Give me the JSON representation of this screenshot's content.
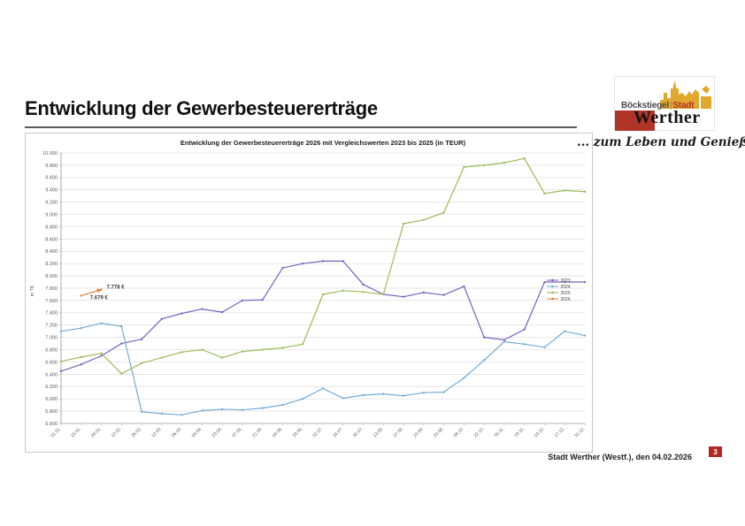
{
  "slide": {
    "title": "Entwicklung der Gewerbesteuererträge",
    "footer": "Stadt Werther (Westf.), den 04.02.2026",
    "page_number": "3"
  },
  "logo": {
    "line1_left": "Böckstiegel",
    "line1_right": "Stadt",
    "line2": "Werther",
    "tagline": "... zum Leben und Genießen",
    "colors": {
      "yellow": "#e2a72e",
      "red": "#b03428"
    }
  },
  "chart_data": {
    "type": "line",
    "title": "Entwicklung der Gewerbesteuererträge 2026 mit Vergleichswerten 2023 bis 2025 (in TEUR)",
    "ylabel": "in T€",
    "ylim": [
      5600,
      10000
    ],
    "ytick_step": 200,
    "grid": true,
    "legend_position": "right-middle",
    "y_ticks": [
      "10.000",
      "9.800",
      "9.600",
      "9.400",
      "9.200",
      "9.000",
      "8.800",
      "8.600",
      "8.400",
      "8.200",
      "8.000",
      "7.800",
      "7.600",
      "7.400",
      "7.200",
      "7.000",
      "6.800",
      "6.600",
      "6.400",
      "6.200",
      "6.000",
      "5.800",
      "5.600"
    ],
    "x": [
      "01.01.",
      "15.01.",
      "29.01.",
      "12.02.",
      "26.02.",
      "12.03.",
      "26.03.",
      "09.04.",
      "23.04.",
      "07.05.",
      "21.05.",
      "04.06.",
      "18.06.",
      "02.07.",
      "16.07.",
      "30.07.",
      "13.08.",
      "27.08.",
      "10.09.",
      "24.09.",
      "08.10.",
      "22.10.",
      "05.11.",
      "19.11.",
      "03.12.",
      "17.12.",
      "31.12."
    ],
    "series": [
      {
        "name": "2023",
        "color": "#7663be",
        "values": [
          6450,
          6560,
          6700,
          6900,
          6970,
          7300,
          7390,
          7460,
          7410,
          7600,
          7610,
          8130,
          8200,
          8240,
          8240,
          7860,
          7700,
          7660,
          7730,
          7690,
          7830,
          7000,
          6960,
          7130,
          7900,
          7900,
          7900
        ]
      },
      {
        "name": "2024",
        "color": "#74acd5",
        "values": [
          7100,
          7150,
          7230,
          7180,
          5790,
          5760,
          5740,
          5810,
          5830,
          5820,
          5850,
          5900,
          6000,
          6170,
          6010,
          6060,
          6080,
          6050,
          6100,
          6110,
          6340,
          6630,
          6930,
          6890,
          6840,
          7100,
          7030
        ]
      },
      {
        "name": "2025",
        "color": "#9bbb59",
        "values": [
          6610,
          6680,
          6740,
          6410,
          6580,
          6670,
          6760,
          6800,
          6670,
          6770,
          6800,
          6830,
          6890,
          7700,
          7760,
          7740,
          7700,
          8850,
          8910,
          9030,
          9770,
          9800,
          9840,
          9910,
          9340,
          9390,
          9370
        ]
      },
      {
        "name": "2026",
        "color": "#e2823a",
        "arrow": true,
        "values": [
          null,
          7679,
          7778,
          null,
          null,
          null,
          null,
          null,
          null,
          null,
          null,
          null,
          null,
          null,
          null,
          null,
          null,
          null,
          null,
          null,
          null,
          null,
          null,
          null,
          null,
          null,
          null
        ],
        "point_labels": [
          {
            "index": 1,
            "text": "7.679 €",
            "dx": 10,
            "dy": 4
          },
          {
            "index": 2,
            "text": "7.778 €",
            "dx": 6,
            "dy": -1
          }
        ]
      }
    ]
  }
}
